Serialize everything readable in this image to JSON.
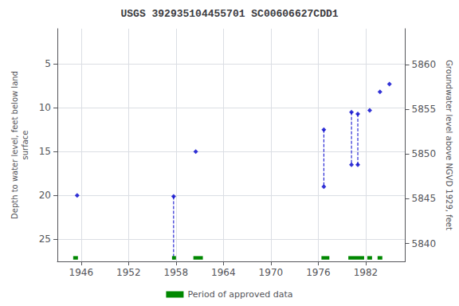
{
  "chart_data": {
    "type": "scatter",
    "title": "USGS 392935104455701 SC00606627CDD1",
    "ylabel": "Depth to water level, feet below land\nsurface",
    "y2label": "Groundwater level above NGVD 1929, feet",
    "xlim": [
      1943,
      1987
    ],
    "ylim": [
      27.5,
      1.0
    ],
    "y2lim": [
      5838,
      5864
    ],
    "xticks": [
      1946,
      1952,
      1958,
      1964,
      1970,
      1976,
      1982
    ],
    "yticks": [
      5,
      10,
      15,
      20,
      25
    ],
    "y2ticks": [
      5840,
      5845,
      5850,
      5855,
      5860
    ],
    "grid": true,
    "legend": "bottom",
    "series": [
      {
        "type": "scatter",
        "marker": "diamond",
        "color": "#0000cc",
        "x": [
          1945.5,
          1957.7,
          1960.5,
          1976.7,
          1976.7,
          1980.2,
          1980.2,
          1981.0,
          1981.0,
          1982.5,
          1983.8,
          1985.0
        ],
        "values": [
          20.0,
          20.1,
          15.0,
          12.5,
          19.0,
          10.5,
          16.5,
          10.7,
          16.5,
          10.3,
          8.2,
          7.3
        ]
      },
      {
        "type": "line",
        "line_style": "dashed",
        "color": "#0000cc",
        "x": [
          1957.7,
          1957.7
        ],
        "values": [
          20.1,
          27.3
        ]
      },
      {
        "type": "line",
        "line_style": "dashed",
        "color": "#0000cc",
        "x": [
          1976.7,
          1976.7
        ],
        "values": [
          12.5,
          19.0
        ]
      },
      {
        "type": "line",
        "line_style": "dashed",
        "color": "#0000cc",
        "x": [
          1980.2,
          1980.2
        ],
        "values": [
          10.5,
          16.5
        ]
      },
      {
        "type": "line",
        "line_style": "dashed",
        "color": "#0000cc",
        "x": [
          1981.0,
          1981.0
        ],
        "values": [
          10.7,
          16.5
        ]
      },
      {
        "type": "bar",
        "name": "Period of approved data",
        "color": "#008800",
        "x": [
          1945.0,
          1957.5,
          1960.2,
          1976.4,
          1979.8,
          1982.2,
          1983.5
        ],
        "widths": [
          0.6,
          0.5,
          1.2,
          1.0,
          2.0,
          0.6,
          0.6
        ],
        "bottom": 27.3,
        "height": 0.4
      }
    ]
  }
}
